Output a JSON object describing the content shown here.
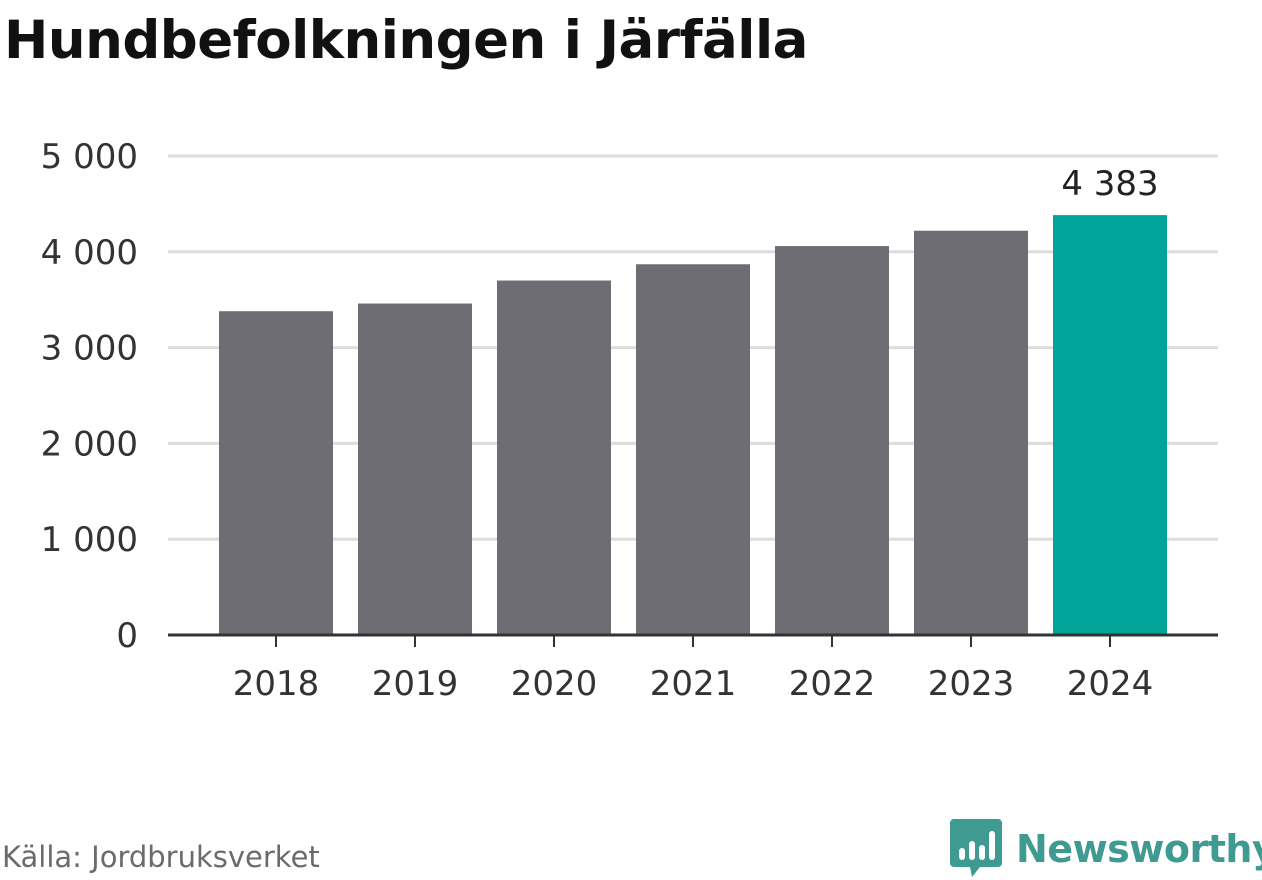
{
  "title": "Hundbefolkningen i Järfälla",
  "source": "Källa: Jordbruksverket",
  "brand": {
    "name": "Newsworthy",
    "color": "#3f9a92",
    "icon": "bar-chart-speech-bubble-icon"
  },
  "colors": {
    "bar": "#6e6d73",
    "highlight": "#00a499",
    "grid": "#dddddd",
    "axis": "#333333"
  },
  "chart_data": {
    "type": "bar",
    "categories": [
      "2018",
      "2019",
      "2020",
      "2021",
      "2022",
      "2023",
      "2024"
    ],
    "values": [
      3380,
      3460,
      3700,
      3870,
      4060,
      4220,
      4383
    ],
    "highlight_index": 6,
    "data_labels": {
      "6": "4 383"
    },
    "ylim": [
      0,
      5000
    ],
    "yticks": [
      0,
      1000,
      2000,
      3000,
      4000,
      5000
    ],
    "ytick_labels": [
      "0",
      "1 000",
      "2 000",
      "3 000",
      "4 000",
      "5 000"
    ],
    "grid": true
  }
}
